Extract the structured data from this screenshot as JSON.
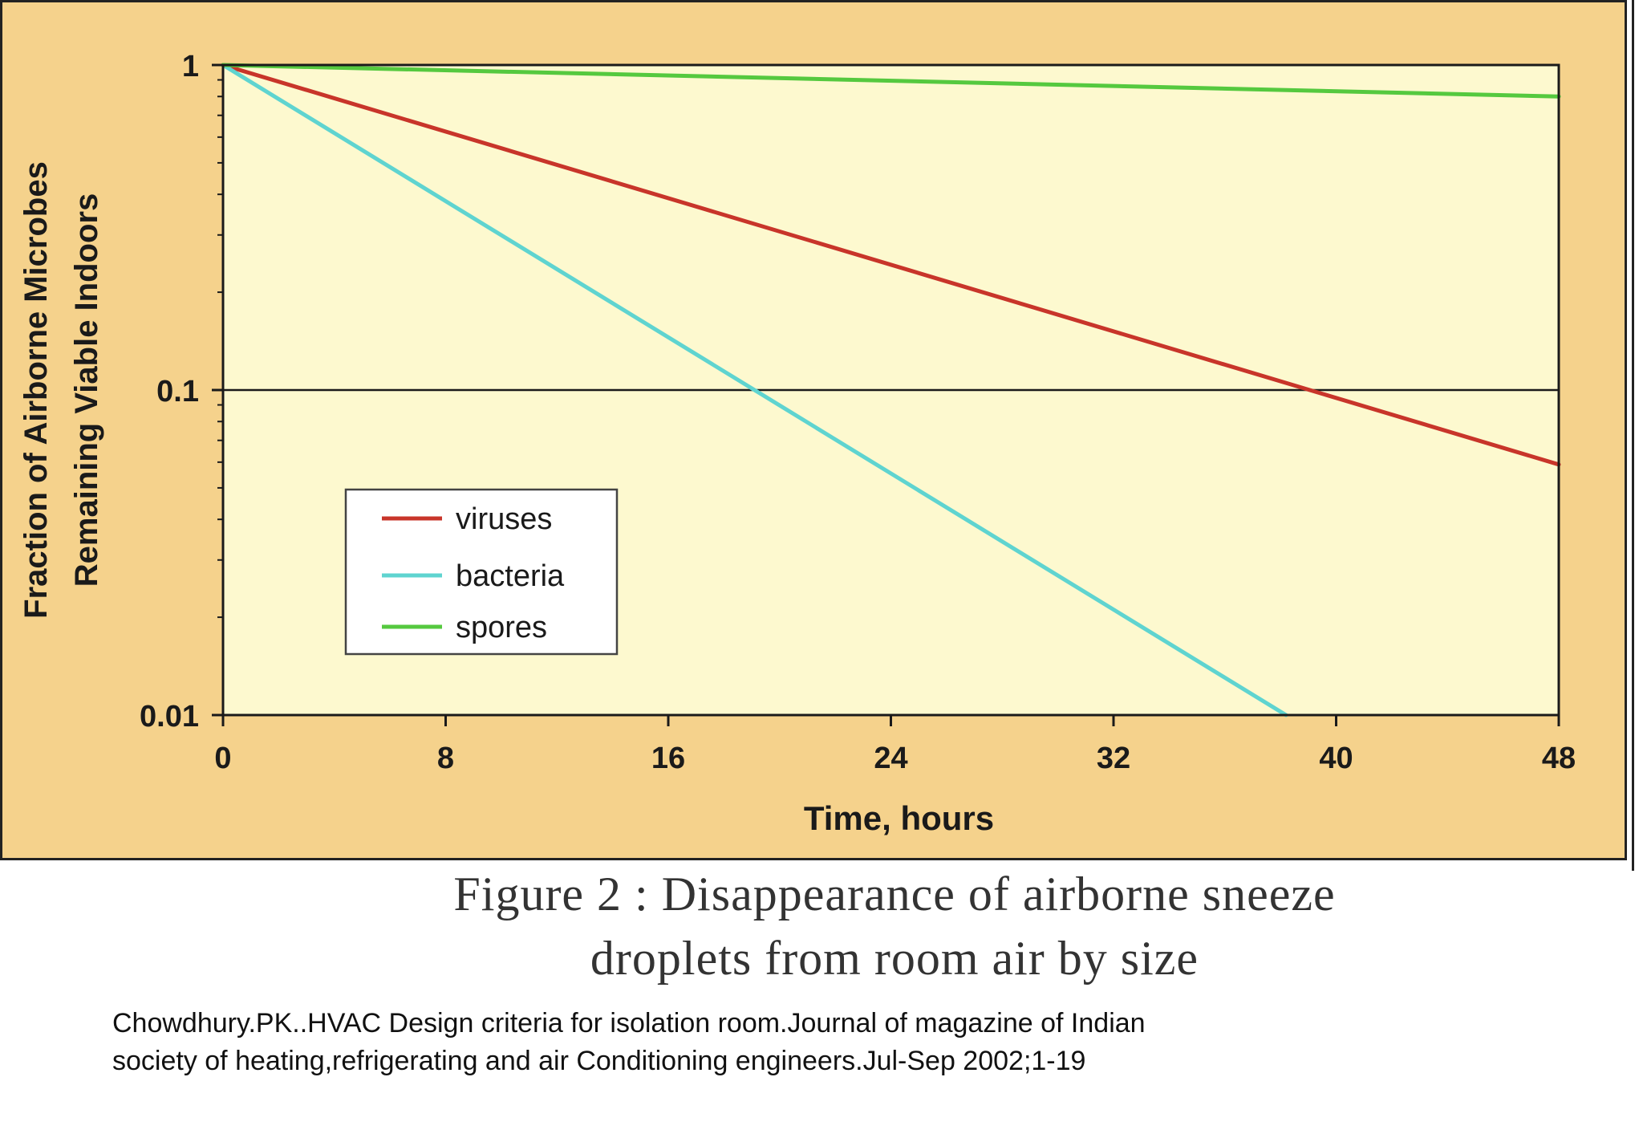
{
  "chart_data": {
    "type": "line",
    "xlabel": "Time, hours",
    "ylabel_lines": [
      "Fraction of Airborne Microbes",
      "Remaining Viable Indoors"
    ],
    "x_ticks": [
      0,
      8,
      16,
      24,
      32,
      40,
      48
    ],
    "x_tick_labels": [
      "0",
      "8",
      "16",
      "24",
      "32",
      "40",
      "48"
    ],
    "y_ticks": [
      0.01,
      0.1,
      1
    ],
    "y_tick_labels": [
      "0.01",
      "0.1",
      "1"
    ],
    "y_scale": "log",
    "xlim": [
      0,
      48
    ],
    "ylim": [
      0.01,
      1
    ],
    "reference_line_y": 0.1,
    "legend_position": "lower-left",
    "series": [
      {
        "name": "viruses",
        "color": "#c8352a",
        "x": [
          0,
          48
        ],
        "y": [
          1,
          0.059
        ]
      },
      {
        "name": "bacteria",
        "color": "#5fd4d0",
        "x": [
          0,
          38.2
        ],
        "y": [
          1,
          0.01
        ]
      },
      {
        "name": "spores",
        "color": "#55c93f",
        "x": [
          0,
          48
        ],
        "y": [
          1,
          0.8
        ]
      }
    ],
    "colors": {
      "panel": "#f5d28c",
      "plot": "#fdf9cf",
      "axis": "#1a1a1a"
    }
  },
  "caption": {
    "line1": "Figure 2 :  Disappearance of airborne sneeze",
    "line2": "droplets from room air by size"
  },
  "reference": {
    "line1": "Chowdhury.PK..HVAC Design criteria for isolation room.Journal of magazine of Indian",
    "line2": "society of heating,refrigerating and air Conditioning engineers.Jul-Sep 2002;1-19"
  }
}
